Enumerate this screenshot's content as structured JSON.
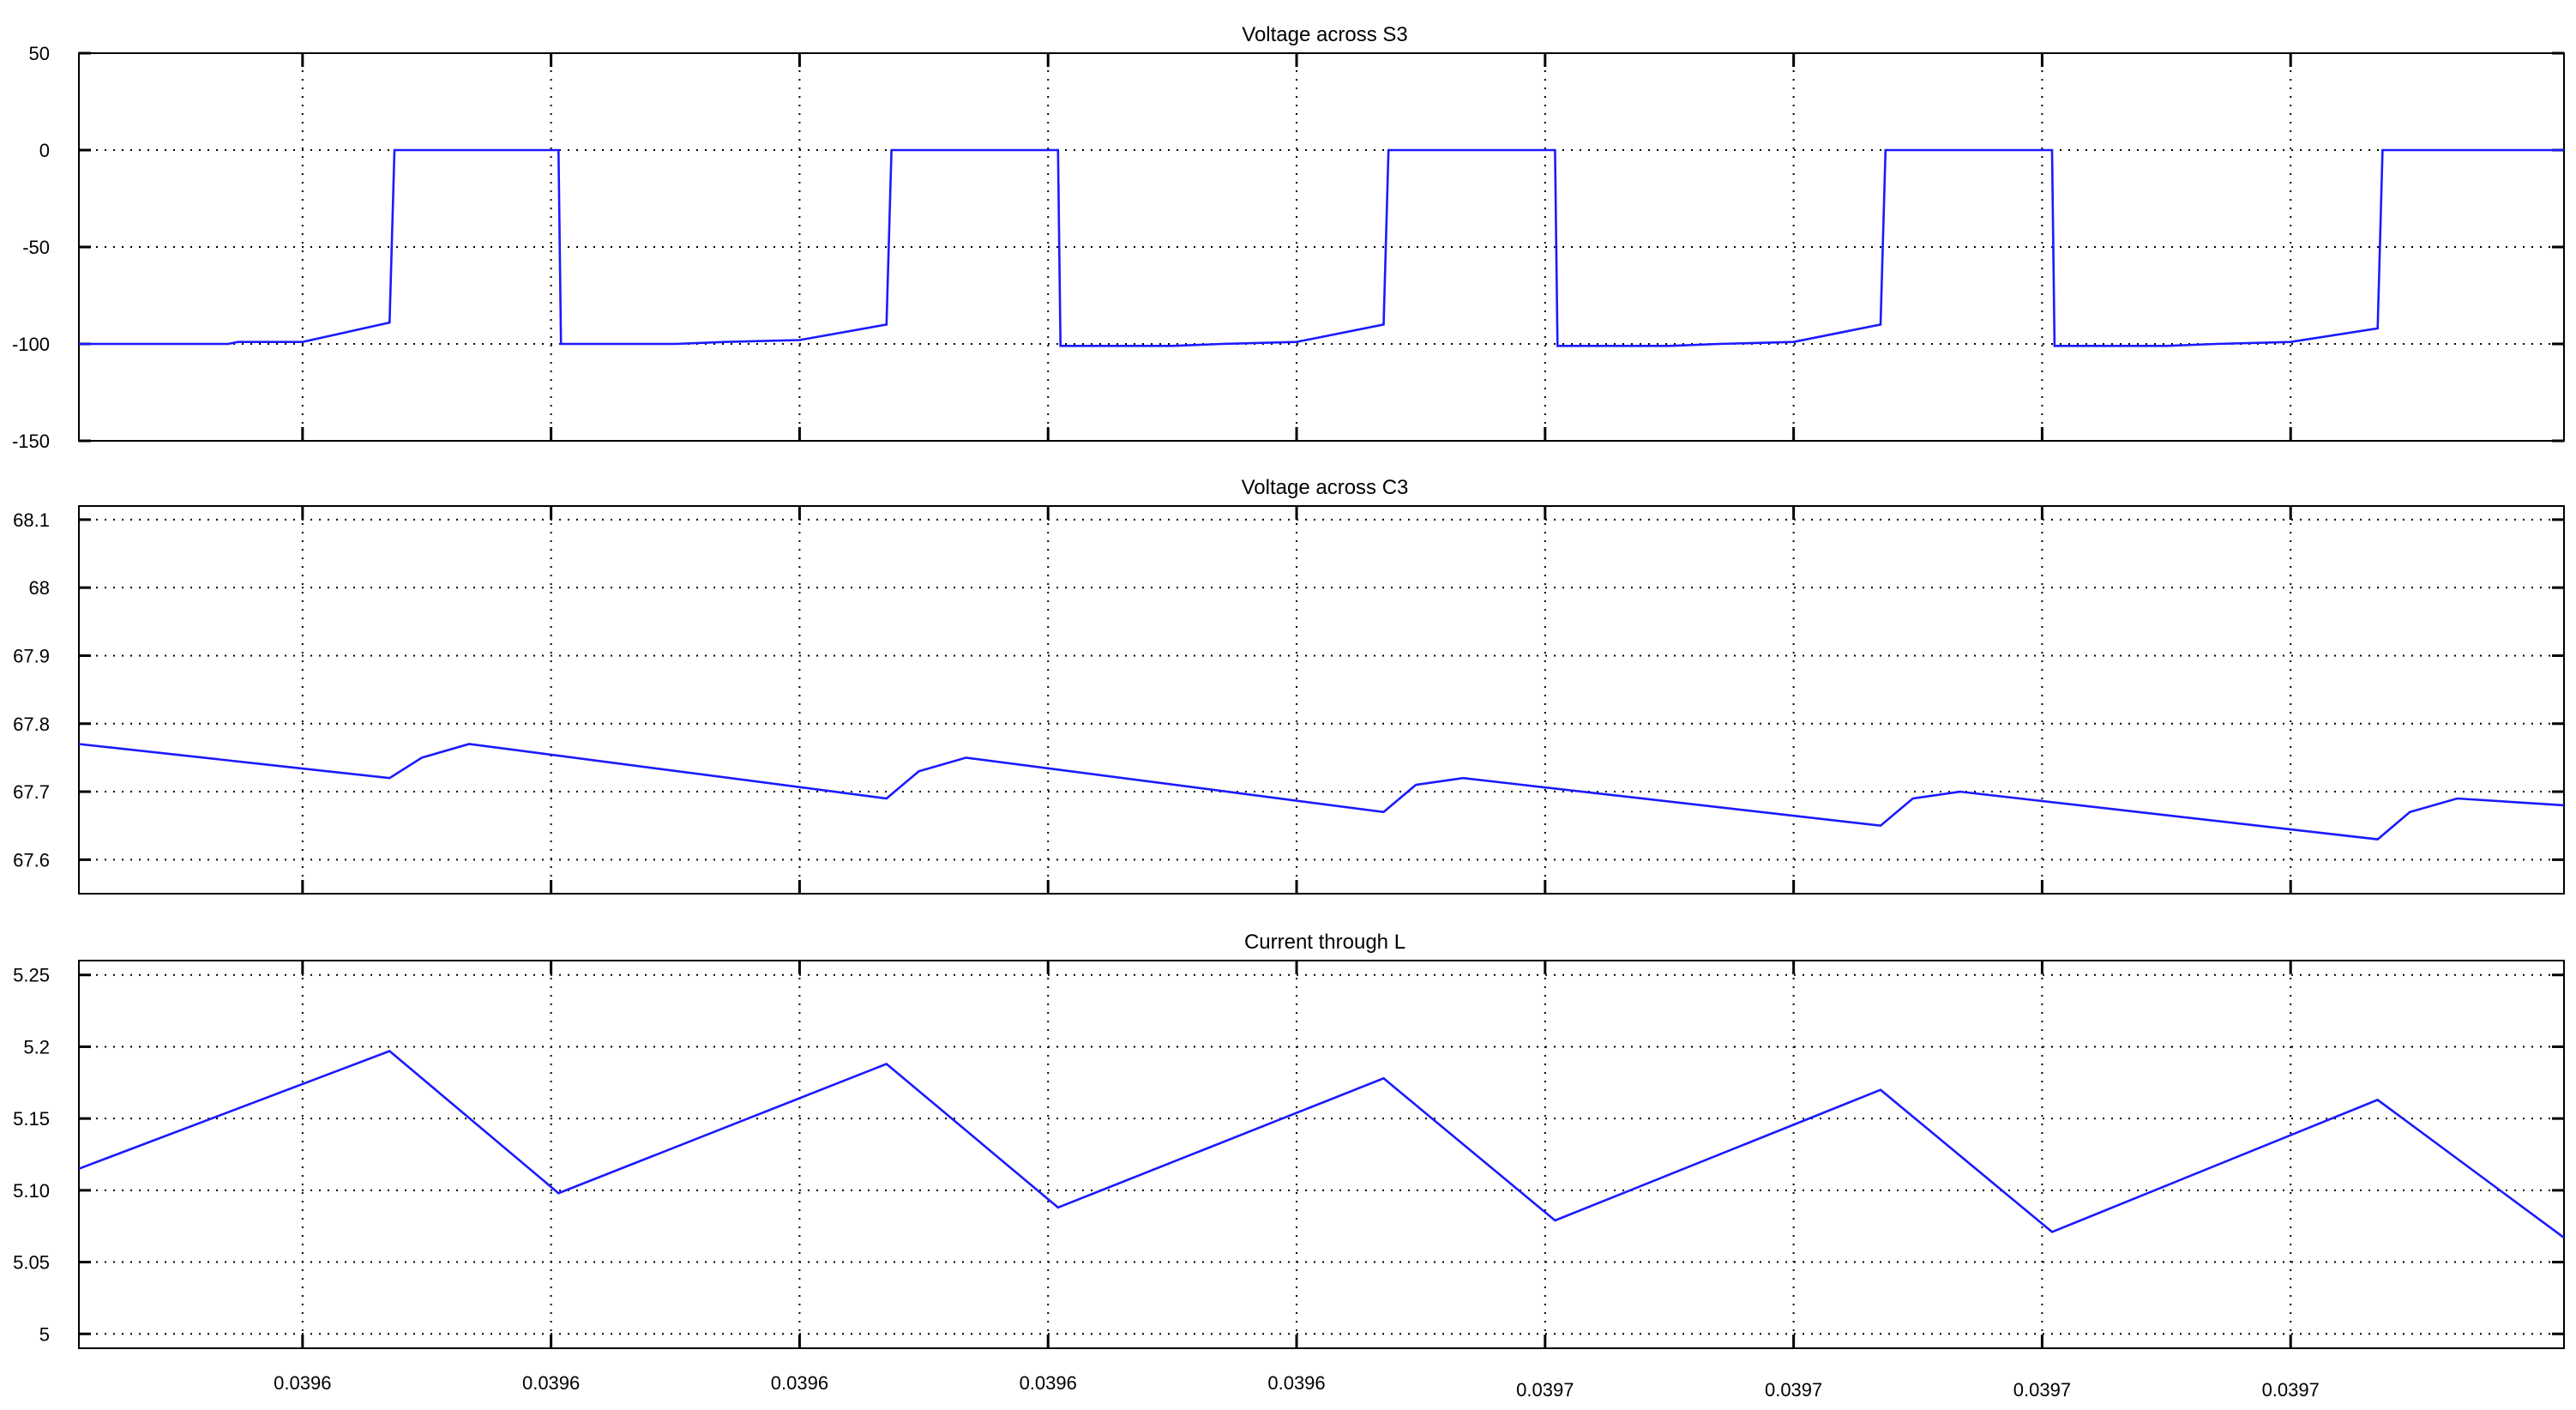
{
  "chart_data": [
    {
      "type": "line",
      "title": "Voltage across S3",
      "xlabel": "",
      "ylabel": "",
      "xlim": [
        0,
        1
      ],
      "ylim": [
        -150,
        50
      ],
      "yticks": [
        50,
        0,
        -50,
        -100,
        -150
      ],
      "ytick_labels": [
        "50",
        "0",
        "-50",
        "-100",
        "-150"
      ],
      "grid": true,
      "series": [
        {
          "color": "#1a1aff",
          "points": [
            [
              0,
              -100
            ],
            [
              0.06,
              -100
            ],
            [
              0.064,
              -99
            ],
            [
              0.09,
              -99
            ],
            [
              0.125,
              -89
            ],
            [
              0.127,
              0
            ],
            [
              0.193,
              0
            ],
            [
              0.194,
              -100
            ],
            [
              0.24,
              -100
            ],
            [
              0.26,
              -99
            ],
            [
              0.29,
              -98
            ],
            [
              0.325,
              -90
            ],
            [
              0.327,
              0
            ],
            [
              0.394,
              0
            ],
            [
              0.395,
              -101
            ],
            [
              0.44,
              -101
            ],
            [
              0.46,
              -100
            ],
            [
              0.49,
              -99
            ],
            [
              0.525,
              -90
            ],
            [
              0.527,
              0
            ],
            [
              0.594,
              0
            ],
            [
              0.595,
              -101
            ],
            [
              0.64,
              -101
            ],
            [
              0.66,
              -100
            ],
            [
              0.69,
              -99
            ],
            [
              0.725,
              -90
            ],
            [
              0.727,
              0
            ],
            [
              0.794,
              0
            ],
            [
              0.795,
              -101
            ],
            [
              0.84,
              -101
            ],
            [
              0.86,
              -100
            ],
            [
              0.89,
              -99
            ],
            [
              0.925,
              -92
            ],
            [
              0.927,
              0
            ],
            [
              1.0,
              0
            ]
          ]
        }
      ]
    },
    {
      "type": "line",
      "title": "Voltage across C3",
      "xlabel": "",
      "ylabel": "",
      "xlim": [
        0,
        1
      ],
      "ylim": [
        67.55,
        68.12
      ],
      "yticks": [
        68.1,
        68,
        67.9,
        67.8,
        67.7,
        67.6
      ],
      "ytick_labels": [
        "68.1",
        "68",
        "67.9",
        "67.8",
        "67.7",
        "67.6"
      ],
      "grid": true,
      "series": [
        {
          "color": "#1a1aff",
          "points": [
            [
              0,
              67.77
            ],
            [
              0.125,
              67.72
            ],
            [
              0.138,
              67.75
            ],
            [
              0.157,
              67.77
            ],
            [
              0.325,
              67.69
            ],
            [
              0.338,
              67.73
            ],
            [
              0.357,
              67.75
            ],
            [
              0.525,
              67.67
            ],
            [
              0.538,
              67.71
            ],
            [
              0.557,
              67.72
            ],
            [
              0.725,
              67.65
            ],
            [
              0.738,
              67.69
            ],
            [
              0.757,
              67.7
            ],
            [
              0.925,
              67.63
            ],
            [
              0.938,
              67.67
            ],
            [
              0.957,
              67.69
            ],
            [
              1.0,
              67.68
            ]
          ]
        }
      ]
    },
    {
      "type": "line",
      "title": "Current through L",
      "xlabel": "",
      "ylabel": "",
      "xlim": [
        0,
        1
      ],
      "xticks": [
        0.09,
        0.19,
        0.29,
        0.39,
        0.49,
        0.59,
        0.69,
        0.79,
        0.89
      ],
      "xtick_labels": [
        "0.0396",
        "0.0396",
        "0.0396",
        "0.0396",
        "0.0396",
        "0.0397",
        "0.0397",
        "0.0397",
        "0.0397"
      ],
      "ylim": [
        4.99,
        5.26
      ],
      "yticks": [
        5.25,
        5.2,
        5.15,
        5.1,
        5.05,
        5
      ],
      "ytick_labels": [
        "5.25",
        "5.2",
        "5.15",
        "5.10",
        "5.05",
        "5"
      ],
      "grid": true,
      "series": [
        {
          "color": "#1a1aff",
          "points": [
            [
              0,
              5.115
            ],
            [
              0.125,
              5.197
            ],
            [
              0.193,
              5.098
            ],
            [
              0.325,
              5.188
            ],
            [
              0.394,
              5.088
            ],
            [
              0.525,
              5.178
            ],
            [
              0.594,
              5.079
            ],
            [
              0.725,
              5.17
            ],
            [
              0.794,
              5.071
            ],
            [
              0.925,
              5.163
            ],
            [
              1.0,
              5.067
            ]
          ]
        }
      ]
    }
  ]
}
